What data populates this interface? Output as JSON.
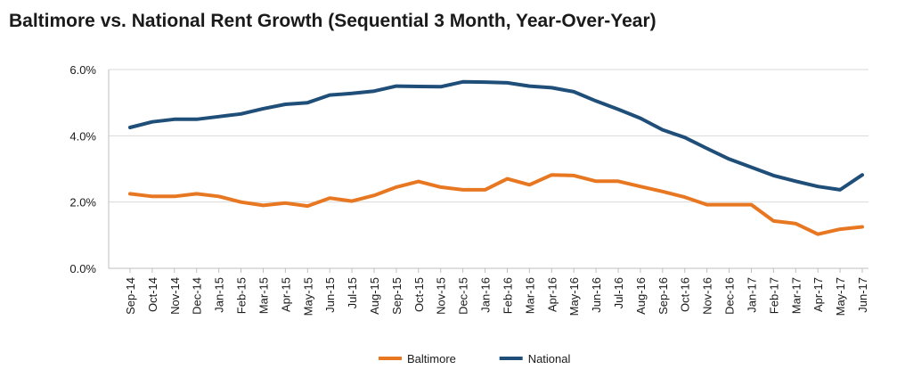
{
  "chart_data": {
    "type": "line",
    "title": "Baltimore vs. National Rent Growth (Sequential 3 Month, Year-Over-Year)",
    "categories": [
      "Sep-14",
      "Oct-14",
      "Nov-14",
      "Dec-14",
      "Jan-15",
      "Feb-15",
      "Mar-15",
      "Apr-15",
      "May-15",
      "Jun-15",
      "Jul-15",
      "Aug-15",
      "Sep-15",
      "Oct-15",
      "Nov-15",
      "Dec-15",
      "Jan-16",
      "Feb-16",
      "Mar-16",
      "Apr-16",
      "May-16",
      "Jun-16",
      "Jul-16",
      "Aug-16",
      "Sep-16",
      "Oct-16",
      "Nov-16",
      "Dec-16",
      "Jan-17",
      "Feb-17",
      "Mar-17",
      "Apr-17",
      "May-17",
      "Jun-17"
    ],
    "series": [
      {
        "name": "Baltimore",
        "color": "#E87722",
        "values": [
          2.25,
          2.17,
          2.17,
          2.25,
          2.17,
          2.0,
          1.9,
          1.97,
          1.88,
          2.12,
          2.03,
          2.2,
          2.45,
          2.62,
          2.45,
          2.37,
          2.37,
          2.7,
          2.52,
          2.82,
          2.8,
          2.63,
          2.63,
          2.47,
          2.32,
          2.15,
          1.92,
          1.92,
          1.92,
          1.43,
          1.35,
          1.03,
          1.18,
          1.25
        ]
      },
      {
        "name": "National",
        "color": "#1F4E79",
        "values": [
          4.25,
          4.42,
          4.5,
          4.5,
          4.58,
          4.66,
          4.82,
          4.95,
          5.0,
          5.23,
          5.28,
          5.35,
          5.5,
          5.49,
          5.48,
          5.63,
          5.62,
          5.6,
          5.5,
          5.45,
          5.33,
          5.05,
          4.8,
          4.53,
          4.18,
          3.95,
          3.62,
          3.3,
          3.05,
          2.8,
          2.63,
          2.47,
          2.37,
          2.82
        ]
      }
    ],
    "y_ticks": [
      "0.0%",
      "2.0%",
      "4.0%",
      "6.0%"
    ],
    "ylim": [
      0,
      6
    ],
    "grid": true,
    "legend_position": "bottom-center"
  }
}
